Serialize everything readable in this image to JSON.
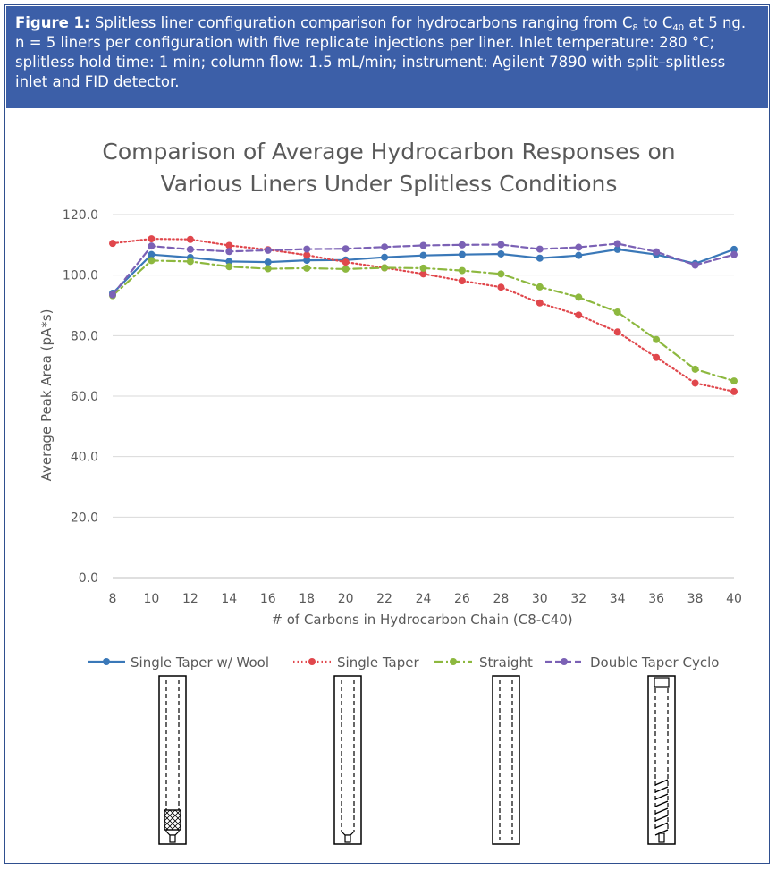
{
  "caption": {
    "label": "Figure 1:",
    "part1": "Splitless liner configuration comparison for hydrocarbons ranging from C",
    "sub1": "8",
    "part2": " to C",
    "sub2": "40",
    "part3": " at 5 ng. n = 5 liners per configuration with five replicate injections per liner. Inlet temperature: 280 °C; splitless hold time: 1 min; column flow: 1.5 mL/min; instrument: Agilent 7890 with split–splitless inlet and FID detector."
  },
  "chart_data": {
    "type": "line",
    "title_line1": "Comparison of Average Hydrocarbon Responses on",
    "title_line2": "Various Liners Under Splitless Conditions",
    "xlabel": "# of Carbons in Hydrocarbon Chain (C8-C40)",
    "ylabel": "Average Peak Area (pA*s)",
    "ylim": [
      0,
      120
    ],
    "yticks": [
      "0.0",
      "20.0",
      "40.0",
      "60.0",
      "80.0",
      "100.0",
      "120.0"
    ],
    "ytick_values": [
      0,
      20,
      40,
      60,
      80,
      100,
      120
    ],
    "categories": [
      "8",
      "10",
      "12",
      "14",
      "16",
      "18",
      "20",
      "22",
      "24",
      "26",
      "28",
      "30",
      "32",
      "34",
      "36",
      "38",
      "40"
    ],
    "grid": "horizontal",
    "legend_position": "bottom",
    "series": [
      {
        "name": "Single Taper w/ Wool",
        "color": "#3a78b8",
        "style": "solid",
        "values": [
          94.0,
          106.8,
          105.8,
          104.5,
          104.3,
          104.9,
          105.0,
          105.9,
          106.5,
          106.8,
          107.0,
          105.6,
          106.5,
          108.5,
          106.8,
          103.8,
          108.5
        ]
      },
      {
        "name": "Single Taper",
        "color": "#e0474c",
        "style": "dotted",
        "values": [
          110.5,
          112.0,
          111.8,
          109.8,
          108.4,
          106.6,
          104.3,
          102.4,
          100.4,
          98.1,
          96.0,
          90.8,
          86.8,
          81.2,
          72.8,
          64.3,
          61.5
        ]
      },
      {
        "name": "Straight",
        "color": "#8db83f",
        "style": "dashdot",
        "values": [
          93.2,
          104.8,
          104.5,
          102.8,
          102.1,
          102.3,
          102.0,
          102.4,
          102.3,
          101.5,
          100.4,
          96.1,
          92.7,
          87.8,
          78.7,
          68.9,
          65.0
        ]
      },
      {
        "name": "Double Taper Cyclo",
        "color": "#7b61b5",
        "style": "dashed",
        "values": [
          93.5,
          109.6,
          108.5,
          107.8,
          108.2,
          108.6,
          108.7,
          109.3,
          109.8,
          110.0,
          110.1,
          108.6,
          109.2,
          110.4,
          107.7,
          103.3,
          106.8
        ]
      }
    ]
  },
  "liners": [
    {
      "name": "Single Taper w/ Wool"
    },
    {
      "name": "Single Taper"
    },
    {
      "name": "Straight"
    },
    {
      "name": "Double Taper Cyclo"
    }
  ]
}
